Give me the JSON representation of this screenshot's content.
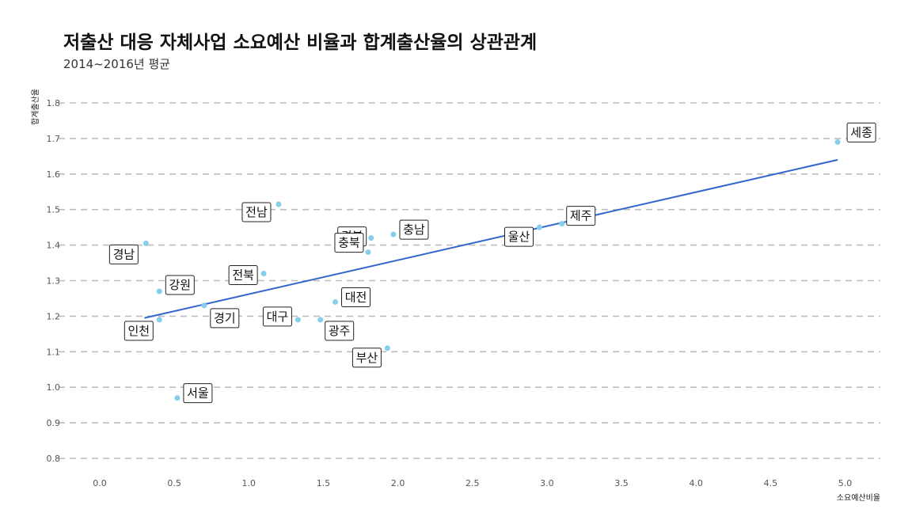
{
  "chart_data": {
    "type": "scatter",
    "title": "저출산 대응 자체사업 소요예산 비율과 합계출산율의 상관관계",
    "subtitle": "2014~2016년 평균",
    "xlabel": "소요예산비율",
    "ylabel": "합계출산율",
    "xlim": [
      -0.3,
      5.3
    ],
    "ylim": [
      0.77,
      1.85
    ],
    "xticks": [
      "0.0",
      "0.5",
      "1.0",
      "1.5",
      "2.0",
      "2.5",
      "3.0",
      "3.5",
      "4.0",
      "4.5",
      "5.0"
    ],
    "yticks": [
      "0.8",
      "0.9",
      "1.0",
      "1.1",
      "1.2",
      "1.3",
      "1.4",
      "1.5",
      "1.6",
      "1.7",
      "1.8"
    ],
    "grid": "horizontal dashed",
    "point_color": "#87CEEB",
    "line_color": "#3366CC",
    "trend_line": {
      "x": [
        0.3,
        4.95
      ],
      "y": [
        1.195,
        1.64
      ]
    },
    "points": [
      {
        "name": "세종",
        "x": 4.95,
        "y": 1.69
      },
      {
        "name": "제주",
        "x": 3.1,
        "y": 1.46
      },
      {
        "name": "울산",
        "x": 2.95,
        "y": 1.45
      },
      {
        "name": "전남",
        "x": 1.2,
        "y": 1.515
      },
      {
        "name": "충남",
        "x": 1.97,
        "y": 1.43
      },
      {
        "name": "경북",
        "x": 1.82,
        "y": 1.42
      },
      {
        "name": "충북",
        "x": 1.8,
        "y": 1.38
      },
      {
        "name": "경남",
        "x": 0.31,
        "y": 1.405
      },
      {
        "name": "전북",
        "x": 1.1,
        "y": 1.32
      },
      {
        "name": "강원",
        "x": 0.4,
        "y": 1.27
      },
      {
        "name": "대전",
        "x": 1.58,
        "y": 1.24
      },
      {
        "name": "경기",
        "x": 0.7,
        "y": 1.23
      },
      {
        "name": "대구",
        "x": 1.33,
        "y": 1.19
      },
      {
        "name": "광주",
        "x": 1.48,
        "y": 1.19
      },
      {
        "name": "인천",
        "x": 0.4,
        "y": 1.19
      },
      {
        "name": "부산",
        "x": 1.93,
        "y": 1.11
      },
      {
        "name": "서울",
        "x": 0.52,
        "y": 0.97
      }
    ]
  }
}
